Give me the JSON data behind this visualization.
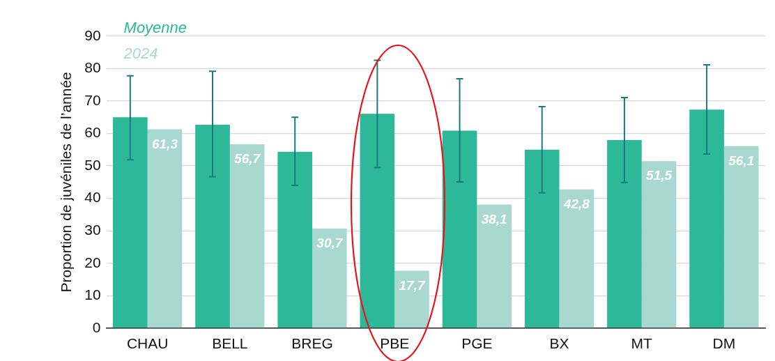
{
  "chart_data": {
    "type": "bar",
    "ylabel": "Proportion de juvéniles de l’année",
    "categories": [
      "CHAU",
      "BELL",
      "BREG",
      "PBE",
      "PGE",
      "BX",
      "MT",
      "DM"
    ],
    "series": [
      {
        "name": "Moyenne",
        "color": "#2db89a",
        "values": [
          65.0,
          62.7,
          54.4,
          66.1,
          60.9,
          55.0,
          58.0,
          67.4
        ],
        "errors": [
          [
            51.9,
            77.8
          ],
          [
            46.7,
            79.2
          ],
          [
            44.0,
            65.0
          ],
          [
            49.5,
            82.6
          ],
          [
            45.1,
            76.9
          ],
          [
            41.7,
            68.3
          ],
          [
            44.9,
            71.1
          ],
          [
            53.7,
            81.2
          ]
        ]
      },
      {
        "name": "2024",
        "color": "#a8d8cf",
        "values": [
          61.3,
          56.7,
          30.7,
          17.7,
          38.1,
          42.8,
          51.5,
          56.1
        ],
        "value_labels": [
          "61,3",
          "56,7",
          "30,7",
          "17,7",
          "38,1",
          "42,8",
          "51,5",
          "56,1"
        ]
      }
    ],
    "ylim": [
      0,
      90
    ],
    "yticks": [
      0,
      10,
      20,
      30,
      40,
      50,
      60,
      70,
      80,
      90
    ],
    "grid": "y",
    "legend": "top left"
  }
}
